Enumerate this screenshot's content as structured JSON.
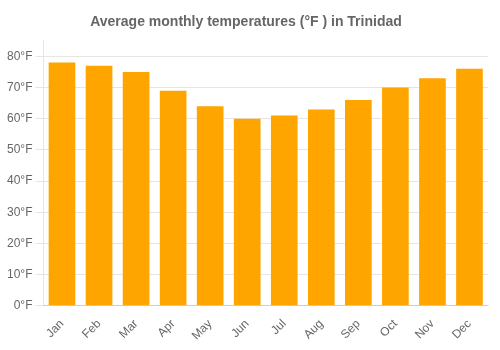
{
  "chart_data": {
    "type": "bar",
    "title": "Average monthly temperatures (°F ) in Trinidad",
    "categories": [
      "Jan",
      "Feb",
      "Mar",
      "Apr",
      "May",
      "Jun",
      "Jul",
      "Aug",
      "Sep",
      "Oct",
      "Nov",
      "Dec"
    ],
    "values": [
      78,
      77,
      75,
      69,
      64,
      60,
      61,
      63,
      66,
      70,
      73,
      76
    ],
    "color": "#FFA500",
    "ylim": [
      0,
      85
    ],
    "yticks": [
      {
        "value": 0,
        "label": "0°F"
      },
      {
        "value": 10,
        "label": "10°F"
      },
      {
        "value": 20,
        "label": "20°F"
      },
      {
        "value": 30,
        "label": "30°F"
      },
      {
        "value": 40,
        "label": "40°F"
      },
      {
        "value": 50,
        "label": "50°F"
      },
      {
        "value": 60,
        "label": "60°F"
      },
      {
        "value": 70,
        "label": "70°F"
      },
      {
        "value": 80,
        "label": "80°F"
      }
    ],
    "grid": true
  }
}
